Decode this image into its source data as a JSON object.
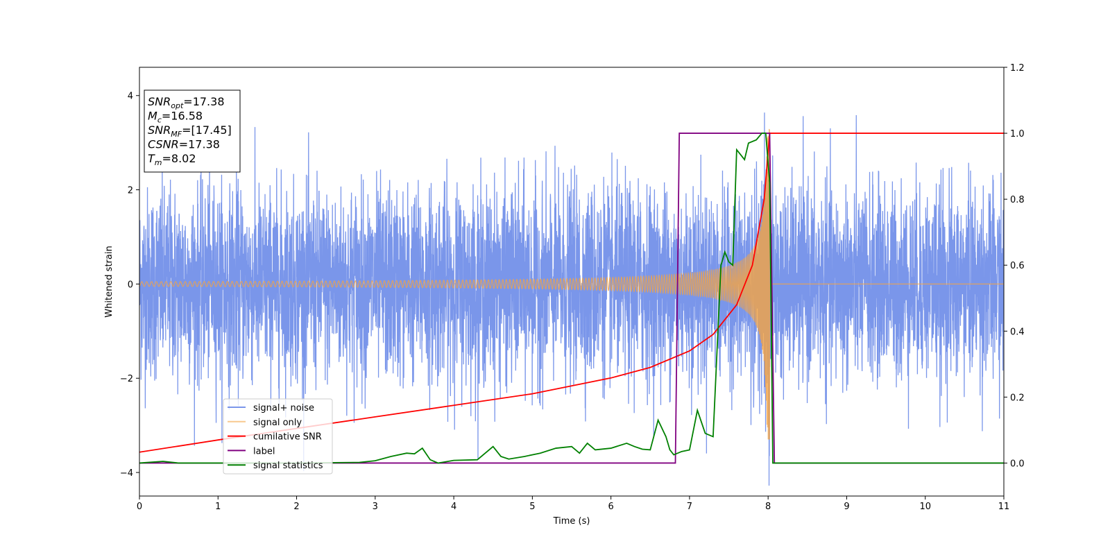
{
  "chart_data": {
    "type": "line",
    "xlabel": "Time (s)",
    "ylabel": "Whitened strain",
    "xlim": [
      0,
      11
    ],
    "ylim_left": [
      -4.5,
      4.6
    ],
    "ylim_right": [
      -0.1,
      1.2
    ],
    "x_ticks": [
      "0",
      "1",
      "2",
      "3",
      "4",
      "5",
      "6",
      "7",
      "8",
      "9",
      "10",
      "11"
    ],
    "y_left_ticks": [
      "4",
      "2",
      "0",
      "−2",
      "−4"
    ],
    "y_left_tick_values": [
      4,
      2,
      0,
      -2,
      -4
    ],
    "y_right_ticks": [
      "1.2",
      "1.0",
      "0.8",
      "0.6",
      "0.4",
      "0.2",
      "0.0"
    ],
    "y_right_tick_values": [
      1.2,
      1.0,
      0.8,
      0.6,
      0.4,
      0.2,
      0.0
    ],
    "grid": false,
    "legend_position": "lower-left",
    "annotation": {
      "lines": [
        {
          "main": "SNR",
          "sub": "opt",
          "rest": "=17.38"
        },
        {
          "main": "M",
          "sub": "c",
          "rest": "=16.58"
        },
        {
          "main": "SNR",
          "sub": "MF",
          "rest": "=[17.45]"
        },
        {
          "main": "CSNR",
          "sub": "",
          "rest": "=17.38"
        },
        {
          "main": "T",
          "sub": "m",
          "rest": "=8.02"
        }
      ]
    },
    "series": [
      {
        "name": "signal+ noise",
        "axis": "left",
        "color": "#4169e1",
        "style": "noise",
        "note_values": {
          "noise_sigma": 1.0,
          "time_range": [
            0,
            11
          ]
        }
      },
      {
        "name": "signal only",
        "axis": "left",
        "color": "#f5a442",
        "style": "chirp",
        "note_values": {
          "merger_time": 8.02,
          "amplitude_at_start": 0.05,
          "amplitude_at_merger": 3.3
        }
      },
      {
        "name": "cumilative SNR",
        "axis": "right",
        "color": "#ff0000",
        "x": [
          0,
          1,
          2,
          3,
          4,
          5,
          6,
          6.5,
          7,
          7.3,
          7.6,
          7.8,
          7.95,
          8.02,
          8.05,
          11
        ],
        "y": [
          0.033,
          0.07,
          0.105,
          0.14,
          0.175,
          0.21,
          0.258,
          0.29,
          0.34,
          0.39,
          0.48,
          0.6,
          0.8,
          1.0,
          1.0,
          1.0
        ]
      },
      {
        "name": "label",
        "axis": "right",
        "color": "#800080",
        "x": [
          0,
          6.82,
          6.87,
          8.02,
          8.02,
          8.08,
          11
        ],
        "y": [
          0,
          0,
          1,
          1,
          1,
          0,
          0
        ]
      },
      {
        "name": "signal statistics",
        "axis": "right",
        "color": "#008000",
        "x": [
          0,
          0.3,
          0.5,
          1.0,
          2.0,
          2.8,
          3.0,
          3.2,
          3.4,
          3.5,
          3.6,
          3.7,
          3.8,
          4.0,
          4.3,
          4.5,
          4.6,
          4.7,
          4.9,
          5.1,
          5.3,
          5.5,
          5.6,
          5.7,
          5.8,
          6.0,
          6.2,
          6.3,
          6.4,
          6.5,
          6.6,
          6.7,
          6.75,
          6.8,
          6.9,
          7.0,
          7.1,
          7.2,
          7.3,
          7.4,
          7.45,
          7.5,
          7.55,
          7.6,
          7.7,
          7.75,
          7.85,
          7.92,
          7.97,
          8.02,
          8.06,
          8.1,
          11
        ],
        "y": [
          0,
          0.005,
          0.0,
          0.0,
          0.0,
          0.002,
          0.007,
          0.02,
          0.03,
          0.028,
          0.045,
          0.01,
          0.0,
          0.008,
          0.01,
          0.05,
          0.02,
          0.012,
          0.02,
          0.03,
          0.045,
          0.05,
          0.03,
          0.06,
          0.04,
          0.045,
          0.06,
          0.05,
          0.042,
          0.04,
          0.13,
          0.08,
          0.04,
          0.025,
          0.035,
          0.04,
          0.16,
          0.09,
          0.08,
          0.6,
          0.64,
          0.61,
          0.6,
          0.95,
          0.92,
          0.97,
          0.98,
          1.0,
          1.0,
          0.85,
          0.0,
          0.0,
          0.0
        ]
      }
    ]
  }
}
